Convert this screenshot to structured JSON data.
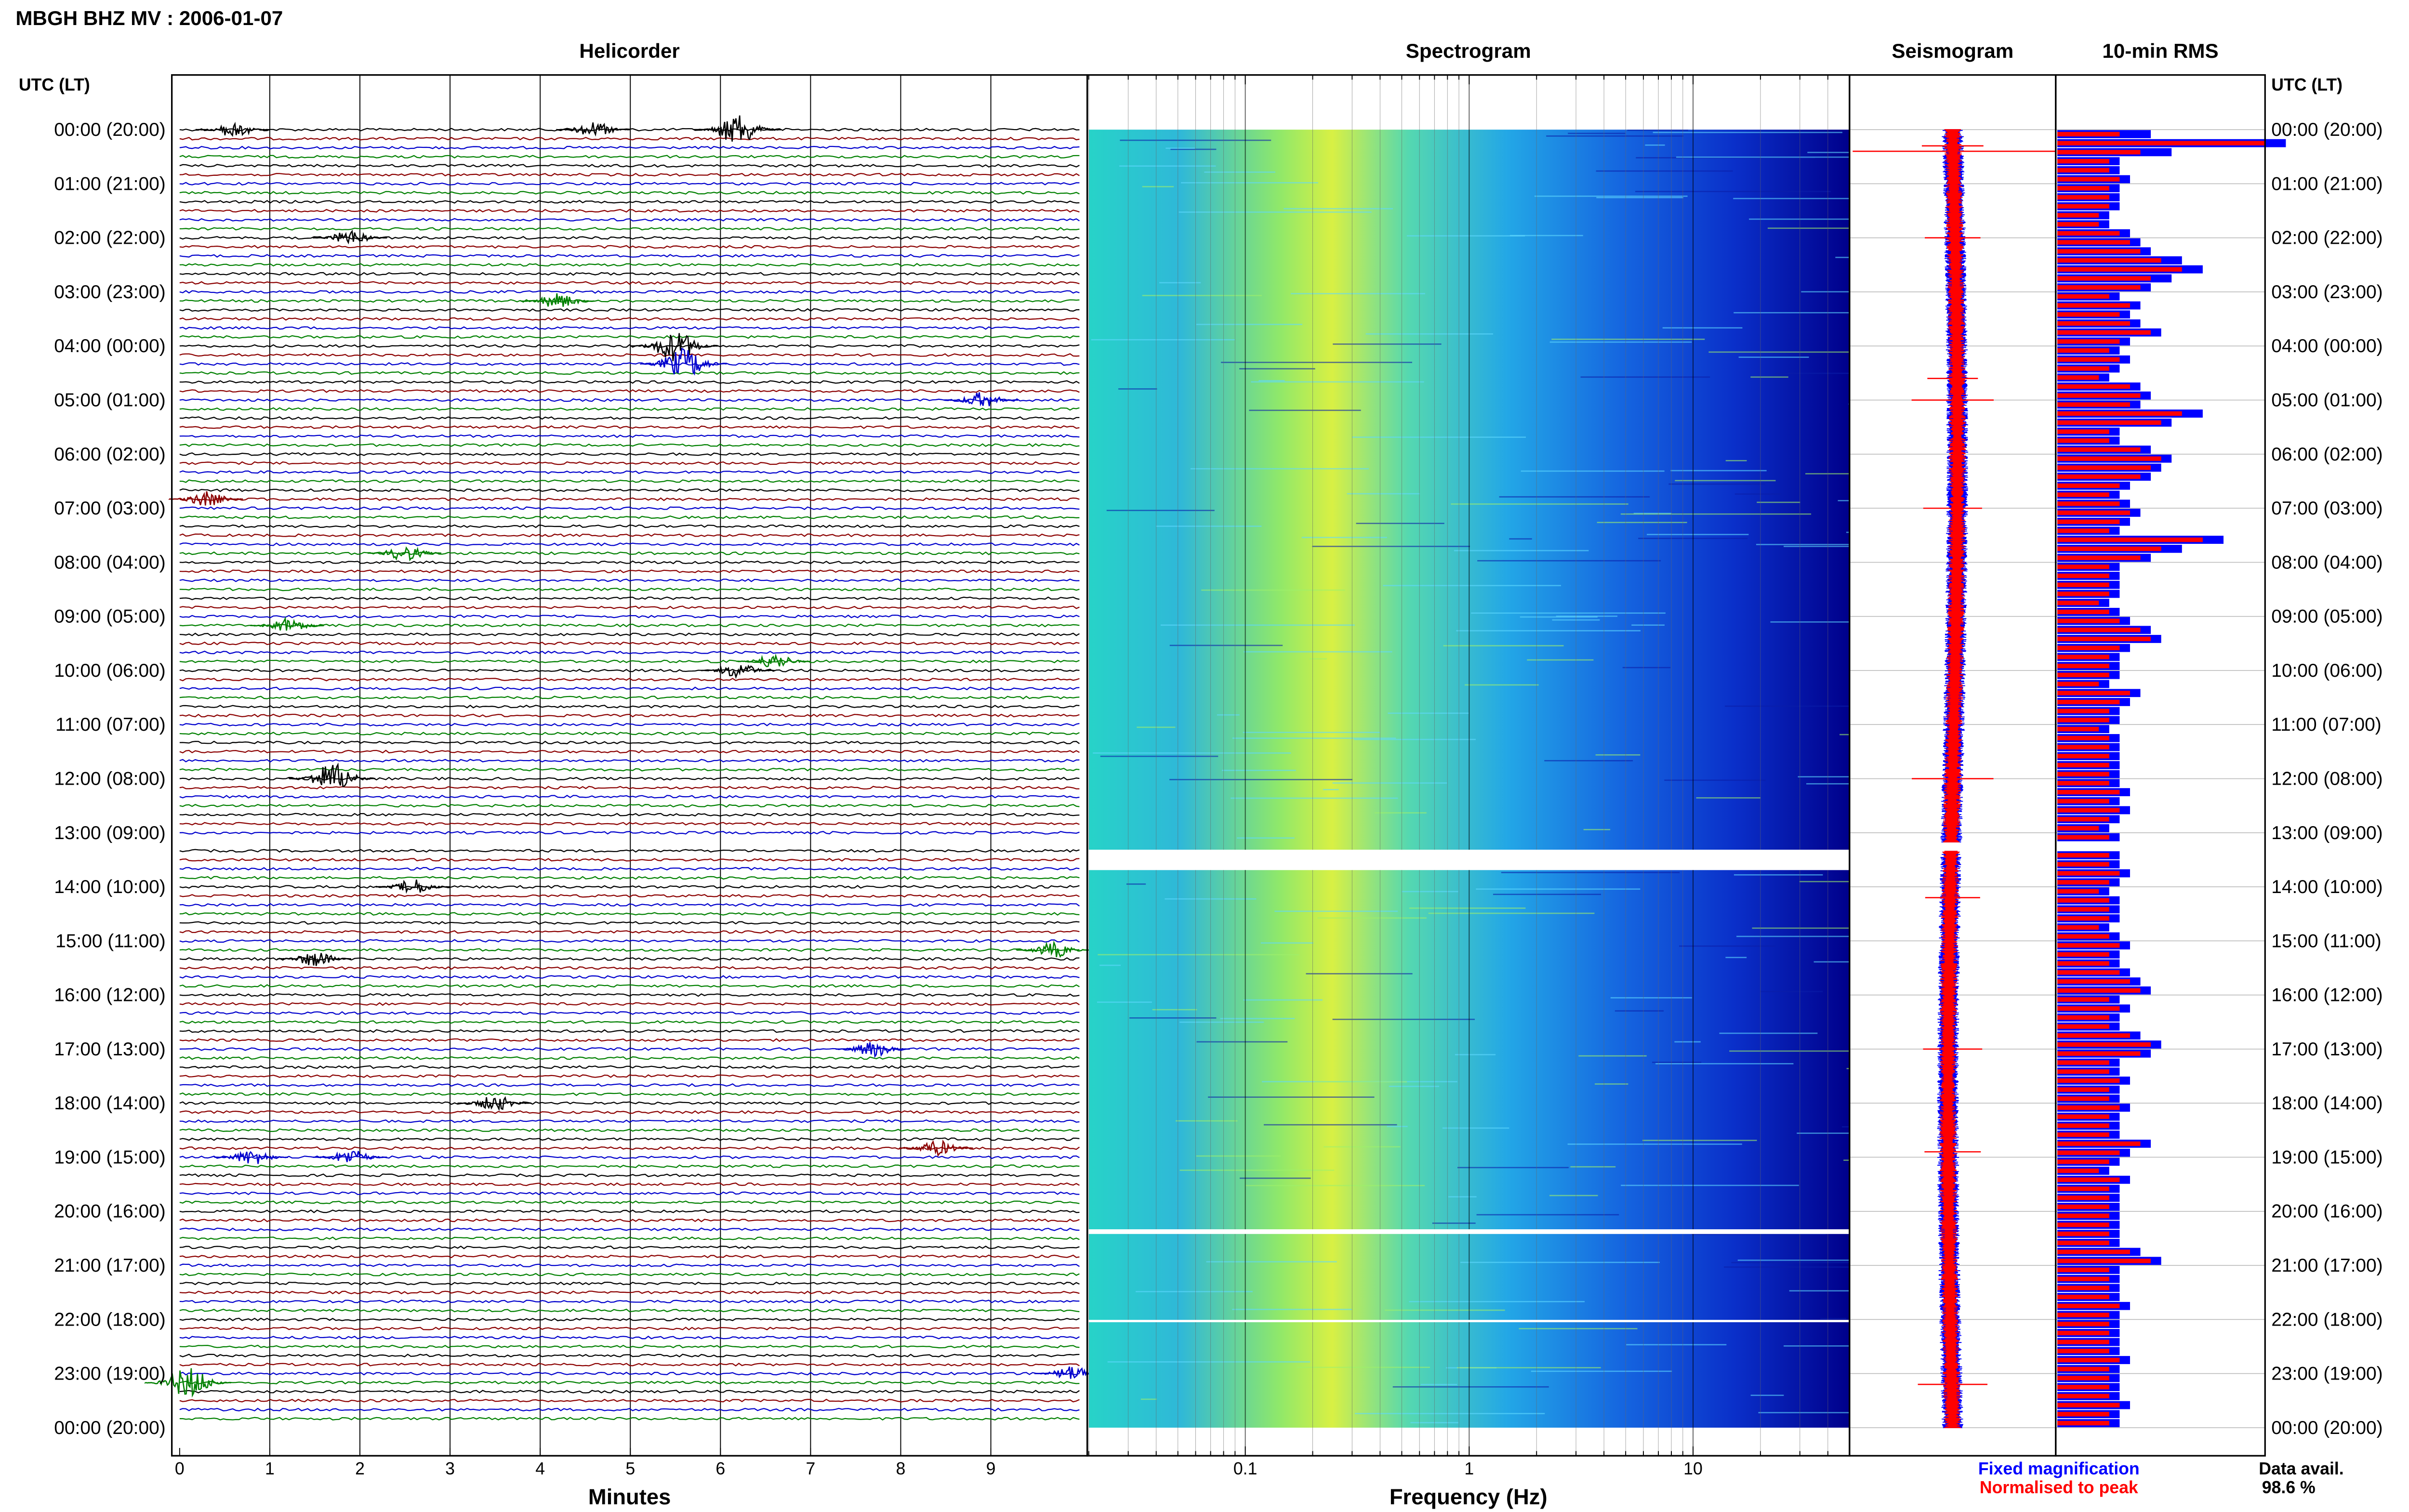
{
  "figure": {
    "title": "MBGH BHZ MV : 2006-01-07",
    "utc_header_left": "UTC (LT)",
    "utc_header_right": "UTC (LT)",
    "panel_titles": [
      "Helicorder",
      "Spectrogram",
      "Seismogram",
      "10-min RMS"
    ],
    "helicorder_xlabel": "Minutes",
    "spectrogram_xlabel": "Frequency (Hz)",
    "legend_fixed": "Fixed magnification",
    "legend_normalised": "Normalised to peak",
    "data_avail_label": "Data avail.",
    "data_avail_value": "98.6 %",
    "colors": {
      "trace_cycle": [
        "#000000",
        "#8b0000",
        "#0000cd",
        "#008000"
      ],
      "fixed": "#0000ff",
      "normalised": "#ff0000",
      "spectrogram_low": "#00008b",
      "spectrogram_high": "#ffff00"
    }
  },
  "chart_data": [
    {
      "type": "line",
      "panel": "Helicorder",
      "xlabel": "Minutes",
      "xlim": [
        0,
        10
      ],
      "x_ticks": [
        "0",
        "1",
        "2",
        "3",
        "4",
        "5",
        "6",
        "7",
        "8",
        "9"
      ],
      "row_labels": [
        "00:00 (20:00)",
        "01:00 (21:00)",
        "02:00 (22:00)",
        "03:00 (23:00)",
        "04:00 (00:00)",
        "05:00 (01:00)",
        "06:00 (02:00)",
        "07:00 (03:00)",
        "08:00 (04:00)",
        "09:00 (05:00)",
        "10:00 (06:00)",
        "11:00 (07:00)",
        "12:00 (08:00)",
        "13:00 (09:00)",
        "14:00 (10:00)",
        "15:00 (11:00)",
        "16:00 (12:00)",
        "17:00 (13:00)",
        "18:00 (14:00)",
        "19:00 (15:00)",
        "20:00 (16:00)",
        "21:00 (17:00)",
        "22:00 (18:00)",
        "23:00 (19:00)",
        "00:00 (20:00)"
      ],
      "traces_per_hour": 6,
      "gap_hours": [
        13.17,
        13.33
      ],
      "events_hour_minute": [
        [
          0.0,
          0.6
        ],
        [
          0.0,
          4.6
        ],
        [
          0.0,
          6.2
        ],
        [
          2.0,
          1.9
        ],
        [
          3.17,
          4.2
        ],
        [
          4.0,
          5.5
        ],
        [
          4.33,
          5.6
        ],
        [
          5.0,
          8.9
        ],
        [
          6.83,
          0.3
        ],
        [
          7.83,
          2.5
        ],
        [
          9.17,
          1.2
        ],
        [
          9.83,
          6.6
        ],
        [
          10.0,
          6.2
        ],
        [
          12.0,
          1.7
        ],
        [
          14.0,
          2.6
        ],
        [
          15.17,
          9.7
        ],
        [
          15.33,
          1.5
        ],
        [
          17.0,
          7.7
        ],
        [
          18.0,
          3.5
        ],
        [
          18.83,
          8.4
        ],
        [
          19.0,
          0.8
        ],
        [
          19.0,
          1.9
        ],
        [
          23.0,
          9.9
        ],
        [
          23.17,
          0.1
        ]
      ]
    },
    {
      "type": "heatmap",
      "panel": "Spectrogram",
      "xlabel": "Frequency (Hz)",
      "x_scale": "log",
      "xlim": [
        0.02,
        50
      ],
      "x_ticks": [
        "0.1",
        "1",
        "10"
      ],
      "colormap": "jet",
      "dominant_band_hz": [
        0.15,
        0.4
      ],
      "gap_hours": [
        [
          13.17,
          13.33
        ],
        [
          20.2,
          20.27
        ],
        [
          21.92,
          21.95
        ]
      ]
    },
    {
      "type": "line",
      "panel": "Seismogram",
      "spike_hours": [
        0.3,
        2.0,
        4.6,
        5.0,
        7.0,
        12.0,
        14.2,
        17.0,
        18.9,
        23.2
      ]
    },
    {
      "type": "bar",
      "panel": "10-min RMS",
      "orientation": "horizontal",
      "series": [
        {
          "name": "Fixed magnification",
          "values": [
            0.45,
            1.1,
            0.55,
            0.3,
            0.3,
            0.35,
            0.3,
            0.3,
            0.3,
            0.25,
            0.25,
            0.35,
            0.4,
            0.45,
            0.6,
            0.7,
            0.55,
            0.45,
            0.3,
            0.4,
            0.35,
            0.4,
            0.5,
            0.35,
            0.3,
            0.35,
            0.3,
            0.25,
            0.4,
            0.45,
            0.4,
            0.7,
            0.55,
            0.3,
            0.3,
            0.45,
            0.55,
            0.5,
            0.45,
            0.35,
            0.3,
            0.35,
            0.4,
            0.35,
            0.3,
            0.8,
            0.6,
            0.45,
            0.3,
            0.3,
            0.3,
            0.3,
            0.25,
            0.3,
            0.35,
            0.45,
            0.5,
            0.35,
            0.3,
            0.3,
            0.3,
            0.25,
            0.4,
            0.35,
            0.3,
            0.3,
            0.25,
            0.3,
            0.3,
            0.3,
            0.3,
            0.3,
            0.3,
            0.35,
            0.3,
            0.35,
            0.3,
            0.25,
            0.3,
            0.35,
            0.3,
            0.3,
            0.35,
            0.3,
            0.25,
            0.3,
            0.3,
            0.3,
            0.25,
            0.3,
            0.35,
            0.3,
            0.3,
            0.35,
            0.4,
            0.45,
            0.3,
            0.35,
            0.3,
            0.3,
            0.4,
            0.5,
            0.45,
            0.3,
            0.3,
            0.35,
            0.3,
            0.3,
            0.35,
            0.3,
            0.3,
            0.3,
            0.45,
            0.35,
            0.3,
            0.25,
            0.35,
            0.3,
            0.3,
            0.3,
            0.3,
            0.3,
            0.3,
            0.3,
            0.4,
            0.5,
            0.3,
            0.3,
            0.3,
            0.3,
            0.35,
            0.3,
            0.3,
            0.3,
            0.3,
            0.3,
            0.35,
            0.3,
            0.3,
            0.3,
            0.3,
            0.35,
            0.3,
            0.3
          ],
          "color": "#0000ff"
        },
        {
          "name": "Normalised to peak",
          "values": [
            0.3,
            1.0,
            0.4,
            0.25,
            0.25,
            0.3,
            0.25,
            0.25,
            0.25,
            0.2,
            0.2,
            0.3,
            0.35,
            0.4,
            0.5,
            0.6,
            0.45,
            0.4,
            0.25,
            0.35,
            0.3,
            0.35,
            0.45,
            0.3,
            0.25,
            0.3,
            0.25,
            0.2,
            0.35,
            0.4,
            0.35,
            0.6,
            0.5,
            0.25,
            0.25,
            0.4,
            0.5,
            0.45,
            0.4,
            0.3,
            0.25,
            0.3,
            0.35,
            0.3,
            0.25,
            0.7,
            0.5,
            0.4,
            0.25,
            0.25,
            0.25,
            0.25,
            0.2,
            0.25,
            0.3,
            0.4,
            0.45,
            0.3,
            0.25,
            0.25,
            0.25,
            0.2,
            0.35,
            0.3,
            0.25,
            0.25,
            0.2,
            0.25,
            0.25,
            0.25,
            0.25,
            0.25,
            0.25,
            0.3,
            0.25,
            0.3,
            0.25,
            0.2,
            0.25,
            0.3,
            0.25,
            0.25,
            0.3,
            0.25,
            0.2,
            0.25,
            0.25,
            0.25,
            0.2,
            0.25,
            0.3,
            0.25,
            0.25,
            0.3,
            0.35,
            0.4,
            0.25,
            0.3,
            0.25,
            0.25,
            0.35,
            0.45,
            0.4,
            0.25,
            0.25,
            0.3,
            0.25,
            0.25,
            0.3,
            0.25,
            0.25,
            0.25,
            0.4,
            0.3,
            0.25,
            0.2,
            0.3,
            0.25,
            0.25,
            0.25,
            0.25,
            0.25,
            0.25,
            0.25,
            0.35,
            0.45,
            0.25,
            0.25,
            0.25,
            0.25,
            0.3,
            0.25,
            0.25,
            0.25,
            0.25,
            0.25,
            0.3,
            0.25,
            0.25,
            0.25,
            0.25,
            0.3,
            0.25,
            0.25
          ],
          "color": "#ff0000"
        }
      ]
    }
  ]
}
